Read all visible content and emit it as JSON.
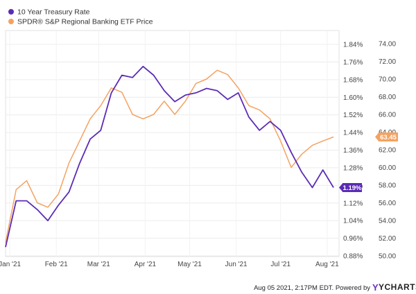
{
  "chart_data": {
    "type": "line",
    "x": [
      "Dec 29",
      "Jan 05",
      "Jan 12",
      "Jan 19",
      "Jan 26",
      "Feb 02",
      "Feb 09",
      "Feb 16",
      "Feb 23",
      "Mar 02",
      "Mar 09",
      "Mar 16",
      "Mar 23",
      "Mar 30",
      "Apr 06",
      "Apr 13",
      "Apr 20",
      "Apr 27",
      "May 04",
      "May 11",
      "May 18",
      "May 25",
      "Jun 01",
      "Jun 08",
      "Jun 15",
      "Jun 22",
      "Jun 29",
      "Jul 06",
      "Jul 13",
      "Jul 20",
      "Jul 27",
      "Aug 03"
    ],
    "x_tick_labels": [
      "Jan '21",
      "Feb '21",
      "Mar '21",
      "Apr '21",
      "May '21",
      "Jun '21",
      "Jul '21",
      "Aug '21"
    ],
    "series": [
      {
        "name": "10 Year Treasury Rate",
        "axis": "left",
        "color": "#5b2bb5",
        "values": [
          0.92,
          1.13,
          1.13,
          1.09,
          1.04,
          1.11,
          1.17,
          1.3,
          1.41,
          1.45,
          1.62,
          1.7,
          1.69,
          1.74,
          1.7,
          1.63,
          1.58,
          1.61,
          1.62,
          1.64,
          1.63,
          1.59,
          1.62,
          1.51,
          1.45,
          1.49,
          1.45,
          1.35,
          1.26,
          1.19,
          1.27,
          1.19
        ]
      },
      {
        "name": "SPDR® S&P Regional Banking ETF Price",
        "axis": "right",
        "color": "#f4a261",
        "values": [
          51.5,
          57.5,
          58.5,
          56.0,
          55.5,
          57.0,
          60.5,
          63.0,
          65.5,
          67.0,
          69.0,
          68.5,
          66.0,
          65.5,
          66.0,
          67.5,
          66.0,
          67.5,
          69.5,
          70.0,
          71.0,
          70.5,
          69.0,
          67.0,
          66.5,
          65.5,
          63.0,
          60.0,
          61.5,
          62.5,
          63.0,
          63.45
        ]
      }
    ],
    "ylim_left": [
      0.88,
      1.88
    ],
    "ylim_right": [
      50,
      75
    ],
    "y_left_tick_labels": [
      "0.88%",
      "0.96%",
      "1.04%",
      "1.12%",
      "1.20%",
      "1.28%",
      "1.36%",
      "1.44%",
      "1.52%",
      "1.60%",
      "1.68%",
      "1.76%",
      "1.84%"
    ],
    "y_right_tick_labels": [
      "50.00",
      "52.00",
      "54.00",
      "56.00",
      "58.00",
      "60.00",
      "62.00",
      "64.00",
      "66.00",
      "68.00",
      "70.00",
      "72.00",
      "74.00"
    ],
    "end_badges": {
      "left": "1.19%",
      "right": "63.45"
    },
    "grid": true,
    "legend": "top-left"
  },
  "legend": {
    "items": [
      {
        "label": "10 Year Treasury Rate",
        "color": "#5b2bb5"
      },
      {
        "label": "SPDR® S&P Regional Banking ETF Price",
        "color": "#f4a261"
      }
    ]
  },
  "footer": {
    "text": "Aug 05 2021, 2:17PM EDT. Powered by",
    "brand": "YCHARTS"
  }
}
